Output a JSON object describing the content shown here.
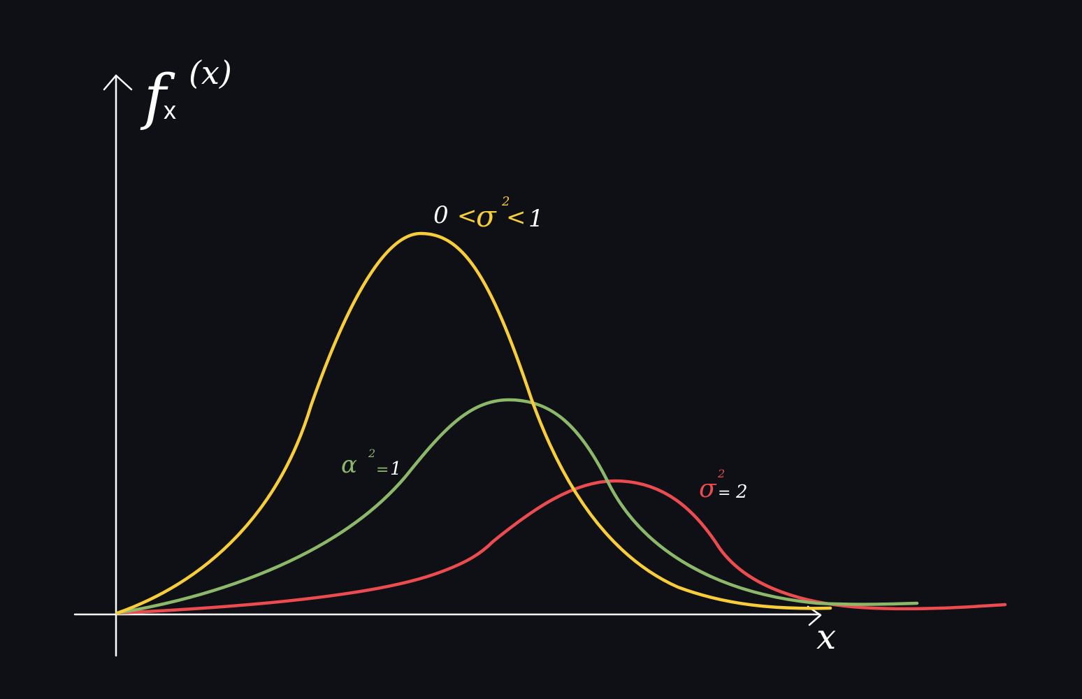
{
  "colors": {
    "background": "#0e1015",
    "axis": "#ffffff",
    "yellow": "#f7cd3a",
    "green": "#8db86a",
    "red": "#ec4c4f",
    "white": "#ffffff"
  },
  "axes": {
    "y_label_f": "f",
    "y_label_sub": "x",
    "y_label_arg": "(x)",
    "x_label": "x"
  },
  "curves": {
    "yellow": {
      "label_left": "0",
      "label_lt1": "<",
      "label_sigma": "σ",
      "label_sq": "2",
      "label_lt2": "<",
      "label_right": "1"
    },
    "green": {
      "label_sigma": "α",
      "label_sq": "2",
      "label_eq": "=",
      "label_value": "1"
    },
    "red": {
      "label_sigma": "σ",
      "label_sq": "2",
      "label_eq": "=",
      "label_value": "2"
    }
  }
}
